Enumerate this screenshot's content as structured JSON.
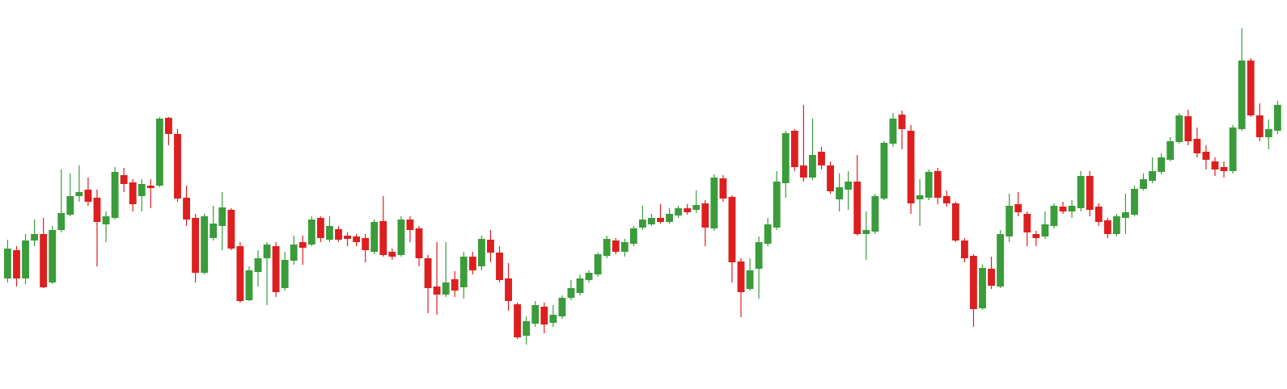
{
  "chart_data": {
    "type": "candlestick",
    "up_color": "#3a9c3a",
    "down_color": "#dd1f1f",
    "ylim": [
      0,
      480
    ],
    "open": [
      135,
      170,
      135,
      182,
      190,
      130,
      195,
      214,
      237,
      245,
      235,
      202,
      210,
      263,
      254,
      237,
      250,
      250,
      334,
      314,
      235,
      210,
      142,
      185,
      200,
      220,
      175,
      108,
      143,
      160,
      175,
      123,
      157,
      180,
      177,
      210,
      183,
      196,
      188,
      187,
      185,
      168,
      206,
      168,
      164,
      208,
      197,
      160,
      125,
      115,
      134,
      124,
      162,
      150,
      183,
      167,
      135,
      103,
      64,
      79,
      100,
      80,
      88,
      111,
      117,
      133,
      140,
      163,
      182,
      168,
      178,
      198,
      202,
      210,
      205,
      213,
      222,
      220,
      228,
      197,
      259,
      236,
      156,
      122,
      147,
      178,
      198,
      253,
      318,
      275,
      260,
      292,
      275,
      233,
      245,
      255,
      190,
      193,
      234,
      302,
      338,
      318,
      233,
      235,
      268,
      237,
      228,
      182,
      163,
      98,
      147,
      125,
      187,
      227,
      215,
      190,
      187,
      200,
      224,
      218,
      222,
      262,
      224,
      207,
      190,
      210,
      214,
      246,
      256,
      267,
      282,
      304,
      336,
      308,
      292,
      280,
      273,
      268,
      320,
      405,
      337,
      310,
      318
    ],
    "high": [
      183,
      175,
      190,
      208,
      210,
      200,
      270,
      265,
      275,
      260,
      245,
      218,
      273,
      272,
      258,
      258,
      258,
      335,
      335,
      320,
      250,
      215,
      215,
      225,
      242,
      222,
      180,
      150,
      170,
      180,
      180,
      168,
      188,
      188,
      212,
      212,
      212,
      200,
      192,
      190,
      190,
      208,
      237,
      172,
      212,
      212,
      200,
      164,
      180,
      180,
      144,
      168,
      168,
      188,
      195,
      175,
      154,
      105,
      88,
      107,
      105,
      102,
      114,
      133,
      140,
      145,
      167,
      188,
      185,
      184,
      200,
      225,
      215,
      227,
      222,
      225,
      227,
      244,
      232,
      264,
      263,
      238,
      160,
      160,
      187,
      210,
      268,
      318,
      320,
      350,
      333,
      298,
      280,
      265,
      268,
      288,
      218,
      240,
      305,
      340,
      343,
      325,
      258,
      270,
      272,
      244,
      230,
      185,
      165,
      152,
      162,
      195,
      240,
      242,
      218,
      194,
      218,
      228,
      230,
      232,
      268,
      268,
      228,
      210,
      215,
      240,
      250,
      265,
      285,
      290,
      310,
      340,
      344,
      322,
      300,
      285,
      280,
      325,
      445,
      408,
      352,
      332,
      355
    ],
    "low": [
      130,
      125,
      128,
      175,
      123,
      128,
      192,
      212,
      230,
      225,
      150,
      180,
      208,
      242,
      218,
      218,
      222,
      248,
      300,
      230,
      200,
      130,
      140,
      182,
      170,
      170,
      105,
      107,
      125,
      102,
      112,
      120,
      152,
      152,
      175,
      180,
      180,
      180,
      175,
      175,
      155,
      165,
      162,
      158,
      162,
      180,
      150,
      92,
      90,
      112,
      112,
      110,
      140,
      145,
      155,
      130,
      95,
      60,
      53,
      75,
      67,
      75,
      85,
      108,
      114,
      130,
      137,
      160,
      165,
      162,
      175,
      195,
      200,
      203,
      203,
      210,
      214,
      216,
      175,
      194,
      230,
      130,
      87,
      120,
      110,
      175,
      195,
      235,
      268,
      255,
      257,
      270,
      240,
      218,
      220,
      188,
      158,
      190,
      232,
      298,
      295,
      215,
      200,
      232,
      227,
      224,
      180,
      155,
      75,
      96,
      122,
      123,
      180,
      212,
      175,
      175,
      184,
      197,
      215,
      210,
      218,
      212,
      200,
      185,
      187,
      190,
      212,
      244,
      253,
      264,
      280,
      302,
      300,
      285,
      270,
      262,
      260,
      265,
      318,
      335,
      305,
      295,
      314
    ],
    "close": [
      172,
      135,
      182,
      190,
      124,
      195,
      216,
      237,
      242,
      230,
      205,
      212,
      267,
      252,
      227,
      252,
      247,
      333,
      314,
      234,
      208,
      142,
      212,
      203,
      223,
      172,
      107,
      145,
      160,
      177,
      118,
      158,
      177,
      173,
      208,
      185,
      200,
      183,
      184,
      180,
      170,
      205,
      164,
      162,
      208,
      195,
      160,
      123,
      115,
      130,
      120,
      162,
      145,
      184,
      167,
      133,
      107,
      62,
      82,
      102,
      78,
      90,
      111,
      123,
      135,
      142,
      165,
      184,
      168,
      180,
      197,
      208,
      210,
      205,
      215,
      222,
      217,
      226,
      198,
      260,
      234,
      155,
      118,
      145,
      180,
      202,
      255,
      315,
      273,
      260,
      288,
      275,
      243,
      248,
      255,
      190,
      195,
      237,
      303,
      333,
      320,
      228,
      238,
      267,
      235,
      228,
      182,
      160,
      97,
      148,
      126,
      190,
      225,
      217,
      192,
      185,
      202,
      225,
      218,
      225,
      262,
      220,
      205,
      190,
      212,
      217,
      246,
      258,
      268,
      285,
      305,
      337,
      305,
      290,
      282,
      270,
      268,
      322,
      405,
      337,
      310,
      320,
      350
    ]
  }
}
